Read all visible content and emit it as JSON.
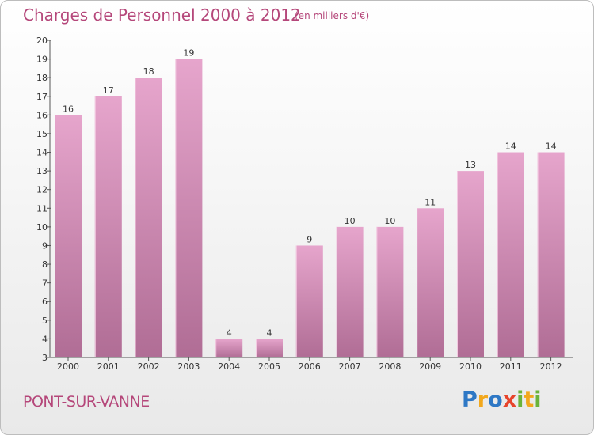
{
  "title": "Charges de Personnel 2000 à 2012",
  "subtitle": "(en milliers d'€)",
  "commune": "PONT-SUR-VANNE",
  "logo": {
    "letters": [
      "P",
      "r",
      "o",
      "x",
      "i",
      "t",
      "i"
    ],
    "colors": [
      "#2e78c5",
      "#f2a81d",
      "#2e78c5",
      "#e7442b",
      "#6bb33a",
      "#f2a81d",
      "#6bb33a"
    ]
  },
  "colors": {
    "bar_top": "#e6a5cc",
    "bar_bottom": "#b06d95",
    "text": "#b5477a"
  },
  "chart_data": {
    "type": "bar",
    "title": "Charges de Personnel 2000 à 2012",
    "subtitle": "(en milliers d'€)",
    "categories": [
      "2000",
      "2001",
      "2002",
      "2003",
      "2004",
      "2005",
      "2006",
      "2007",
      "2008",
      "2009",
      "2010",
      "2011",
      "2012"
    ],
    "values": [
      16,
      17,
      18,
      19,
      4,
      4,
      9,
      10,
      10,
      11,
      13,
      14,
      14
    ],
    "ylim": [
      3,
      20
    ],
    "yticks": [
      3,
      4,
      5,
      6,
      7,
      8,
      9,
      10,
      11,
      12,
      13,
      14,
      15,
      16,
      17,
      18,
      19,
      20
    ],
    "xlabel": "",
    "ylabel": "",
    "grid": false,
    "legend": "none"
  }
}
